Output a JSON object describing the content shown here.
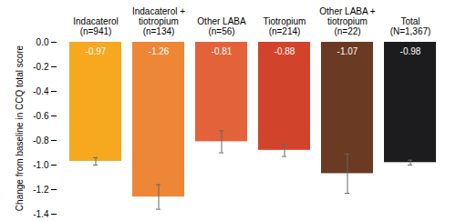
{
  "chart_data": {
    "type": "bar",
    "y_label": "Change from baseline in CCQ total score",
    "categories": [
      "Indacaterol\n(n=941)",
      "Indacaterol +\ntiotropium\n(n=134)",
      "Other LABA\n(n=56)",
      "Tiotropium\n(n=214)",
      "Other LABA +\ntiotropium\n(n=22)",
      "Total\n(N=1,367)"
    ],
    "values": [
      -0.97,
      -1.26,
      -0.81,
      -0.88,
      -1.07,
      -0.98
    ],
    "errors": [
      0.03,
      0.1,
      0.09,
      0.05,
      0.16,
      0.02
    ],
    "colors": [
      "#f6a81f",
      "#ee8637",
      "#e3623a",
      "#d2432b",
      "#6b3a22",
      "#1c1c1e"
    ],
    "ylim": [
      -1.4,
      0
    ],
    "yticks": [
      {
        "value": 0,
        "label": "0.0"
      },
      {
        "value": -0.2,
        "label": "-0.2"
      },
      {
        "value": -0.4,
        "label": "-0.4"
      },
      {
        "value": -0.6,
        "label": "-0.6"
      },
      {
        "value": -0.8,
        "label": "-0.8"
      },
      {
        "value": -1.0,
        "label": "-1.0"
      },
      {
        "value": -1.2,
        "label": "-1.2"
      },
      {
        "value": -1.4,
        "label": "-1.4"
      }
    ],
    "data_labels": true,
    "grid": false
  }
}
